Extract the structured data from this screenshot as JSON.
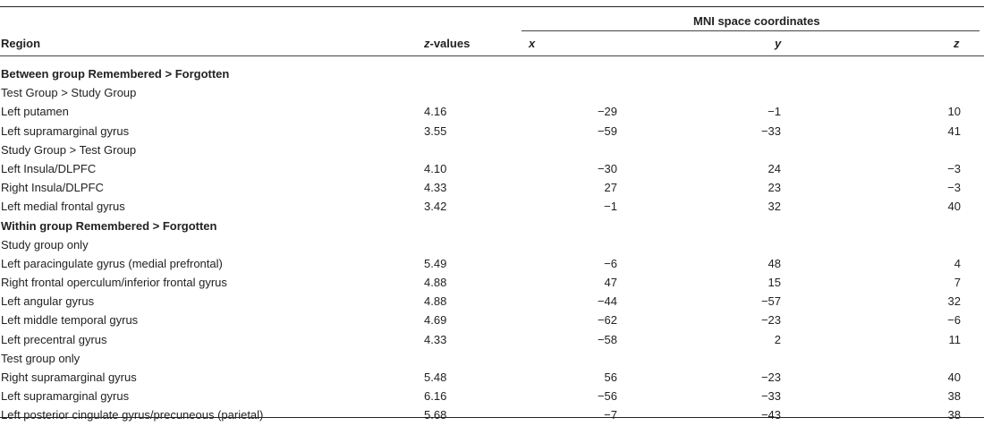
{
  "header": {
    "mni_group": "MNI space coordinates",
    "region": "Region",
    "z_values_italic": "z",
    "z_values_rest": "-values",
    "x": "x",
    "y": "y",
    "z": "z"
  },
  "rows": [
    {
      "type": "section",
      "label": "Between group Remembered > Forgotten"
    },
    {
      "type": "subgroup",
      "label": "Test Group > Study Group"
    },
    {
      "type": "data",
      "region": "Left putamen",
      "zval": "4.16",
      "x": "−29",
      "y": "−1",
      "z": "10"
    },
    {
      "type": "data",
      "region": "Left supramarginal gyrus",
      "zval": "3.55",
      "x": "−59",
      "y": "−33",
      "z": "41"
    },
    {
      "type": "subgroup",
      "label": "Study Group > Test Group"
    },
    {
      "type": "data",
      "region": "Left Insula/DLPFC",
      "zval": "4.10",
      "x": "−30",
      "y": "24",
      "z": "−3"
    },
    {
      "type": "data",
      "region": "Right Insula/DLPFC",
      "zval": "4.33",
      "x": "27",
      "y": "23",
      "z": "−3"
    },
    {
      "type": "data",
      "region": "Left medial frontal gyrus",
      "zval": "3.42",
      "x": "−1",
      "y": "32",
      "z": "40"
    },
    {
      "type": "section",
      "label": "Within group Remembered > Forgotten"
    },
    {
      "type": "subgroup",
      "label": "Study group only"
    },
    {
      "type": "data",
      "region": "Left paracingulate gyrus (medial prefrontal)",
      "zval": "5.49",
      "x": "−6",
      "y": "48",
      "z": "4"
    },
    {
      "type": "data",
      "region": "Right frontal operculum/inferior frontal gyrus",
      "zval": "4.88",
      "x": "47",
      "y": "15",
      "z": "7"
    },
    {
      "type": "data",
      "region": "Left angular gyrus",
      "zval": "4.88",
      "x": "−44",
      "y": "−57",
      "z": "32"
    },
    {
      "type": "data",
      "region": "Left middle temporal gyrus",
      "zval": "4.69",
      "x": "−62",
      "y": "−23",
      "z": "−6"
    },
    {
      "type": "data",
      "region": "Left precentral gyrus",
      "zval": "4.33",
      "x": "−58",
      "y": "2",
      "z": "11"
    },
    {
      "type": "subgroup",
      "label": "Test group only"
    },
    {
      "type": "data",
      "region": "Right supramarginal gyrus",
      "zval": "5.48",
      "x": "56",
      "y": "−23",
      "z": "40"
    },
    {
      "type": "data",
      "region": "Left supramarginal gyrus",
      "zval": "6.16",
      "x": "−56",
      "y": "−33",
      "z": "38"
    },
    {
      "type": "data",
      "region": "Left posterior cingulate gyrus/precuneous (parietal)",
      "zval": "5.68",
      "x": "−7",
      "y": "−43",
      "z": "38"
    }
  ]
}
